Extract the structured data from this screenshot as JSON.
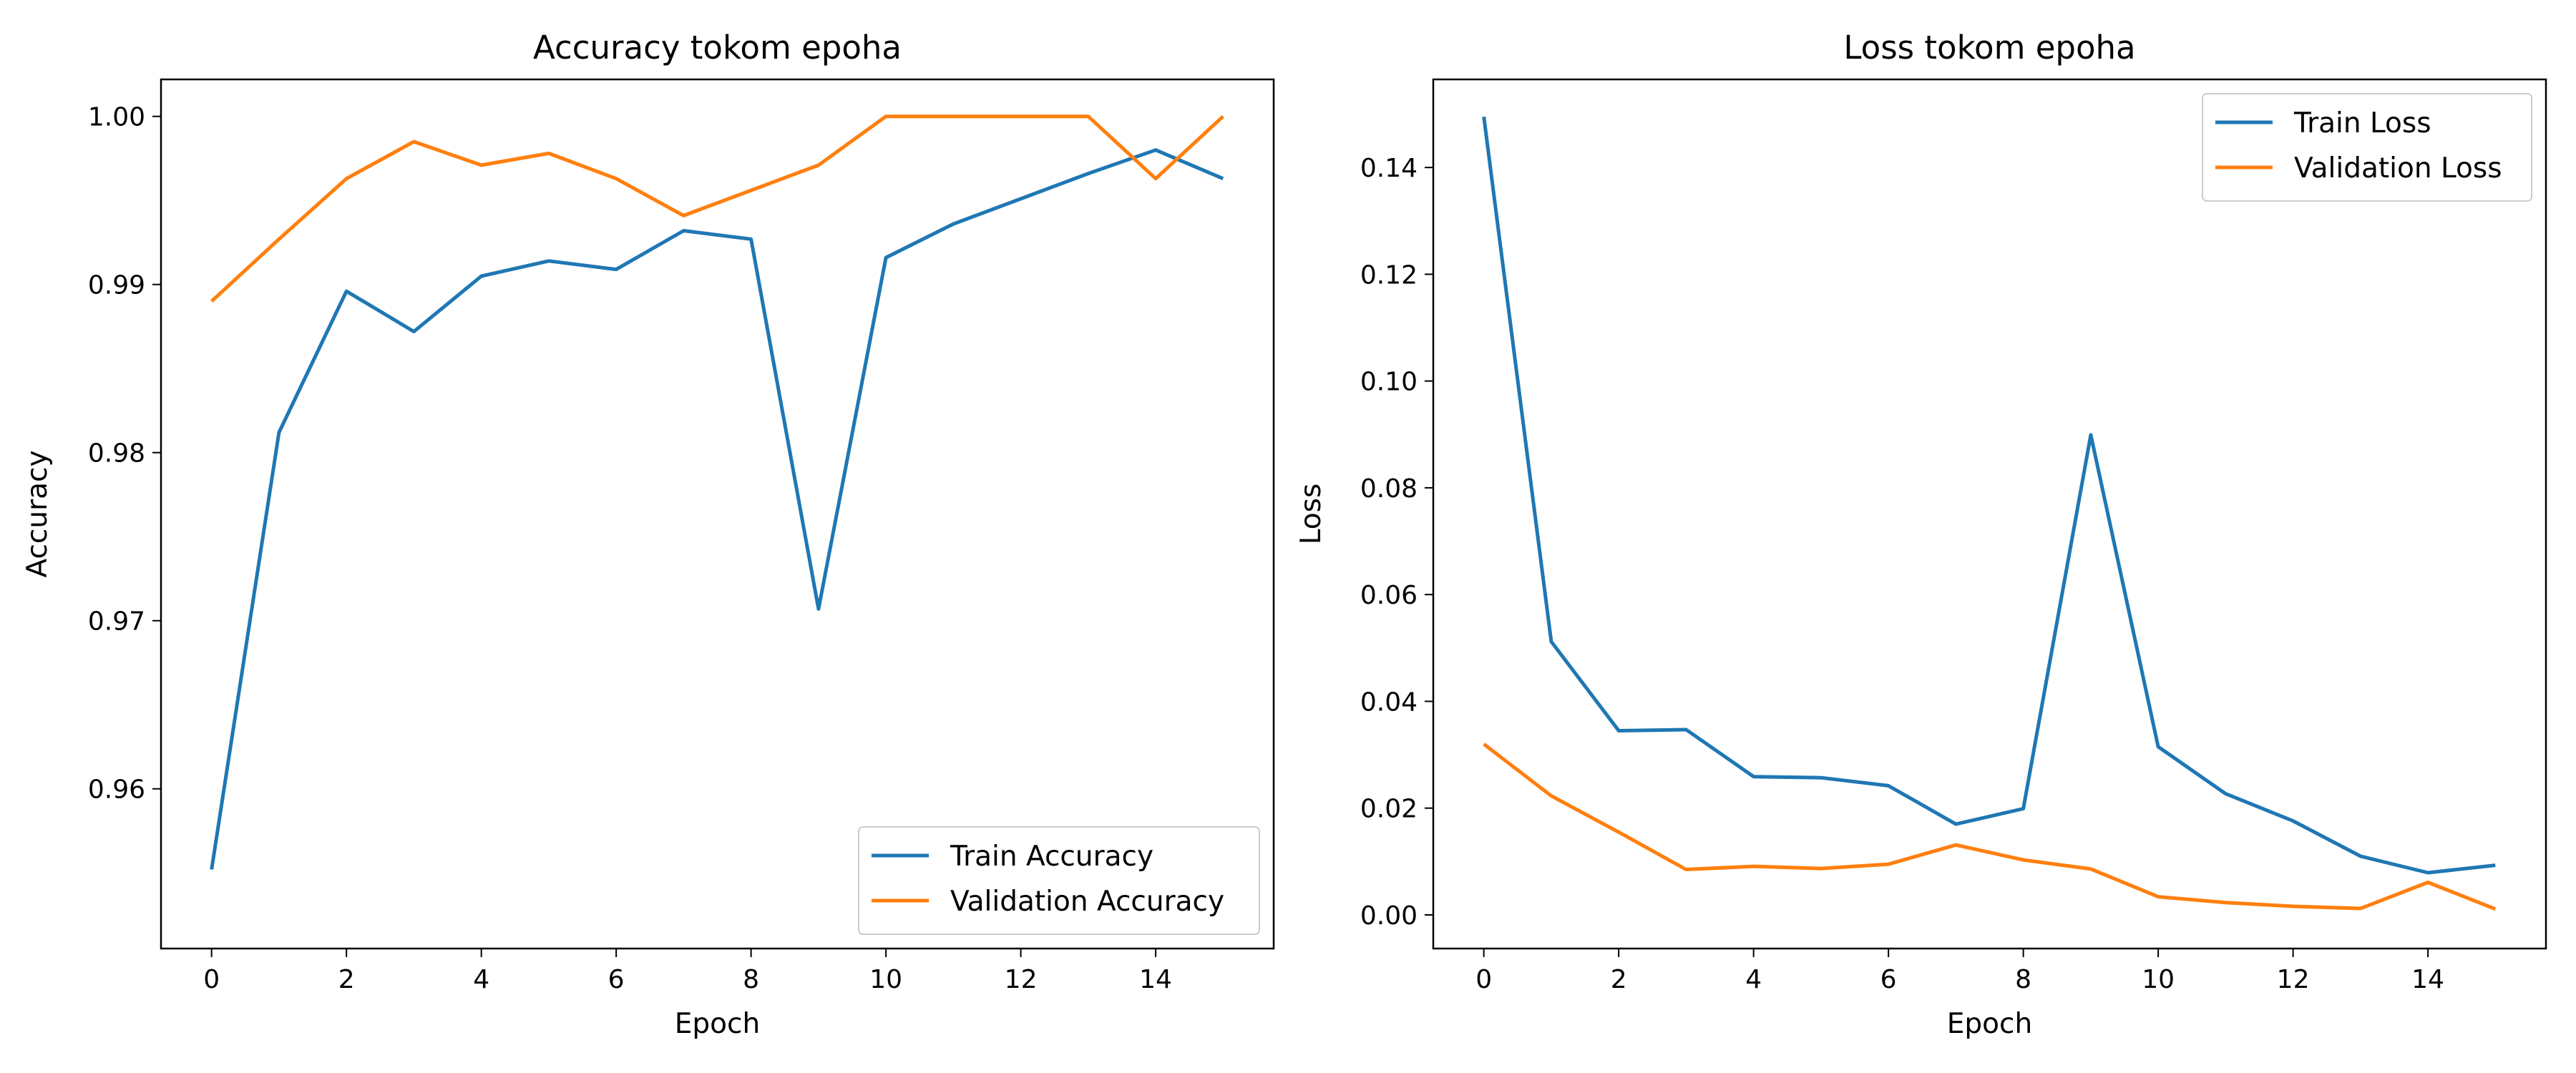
{
  "chart_data": [
    {
      "type": "line",
      "title": "Accuracy tokom epoha",
      "xlabel": "Epoch",
      "ylabel": "Accuracy",
      "x": [
        0,
        1,
        2,
        3,
        4,
        5,
        6,
        7,
        8,
        9,
        10,
        11,
        12,
        13,
        14,
        15
      ],
      "xlim": [
        -0.75,
        15.75
      ],
      "ylim": [
        0.9505,
        1.0022
      ],
      "xticks": [
        0,
        2,
        4,
        6,
        8,
        10,
        12,
        14
      ],
      "xtick_labels": [
        "0",
        "2",
        "4",
        "6",
        "8",
        "10",
        "12",
        "14"
      ],
      "yticks": [
        0.96,
        0.97,
        0.98,
        0.99,
        1.0
      ],
      "ytick_labels": [
        "0.96",
        "0.97",
        "0.98",
        "0.99",
        "1.00"
      ],
      "grid": false,
      "legend_position": "lower-right",
      "series": [
        {
          "name": "Train Accuracy",
          "color": "#1f77b4",
          "values": [
            0.9552,
            0.9812,
            0.9896,
            0.9872,
            0.9905,
            0.9914,
            0.9909,
            0.9932,
            0.9927,
            0.9707,
            0.9916,
            0.9936,
            0.9951,
            0.9966,
            0.998,
            0.9963
          ]
        },
        {
          "name": "Validation Accuracy",
          "color": "#ff7f0e",
          "values": [
            0.989,
            0.9927,
            0.9963,
            0.9985,
            0.9971,
            0.9978,
            0.9963,
            0.9941,
            0.9956,
            0.9971,
            1.0,
            1.0,
            1.0,
            1.0,
            0.9963,
            1.0
          ]
        }
      ]
    },
    {
      "type": "line",
      "title": "Loss tokom epoha",
      "xlabel": "Epoch",
      "ylabel": "Loss",
      "x": [
        0,
        1,
        2,
        3,
        4,
        5,
        6,
        7,
        8,
        9,
        10,
        11,
        12,
        13,
        14,
        15
      ],
      "xlim": [
        -0.75,
        15.75
      ],
      "ylim": [
        -0.0063,
        0.1565
      ],
      "xticks": [
        0,
        2,
        4,
        6,
        8,
        10,
        12,
        14
      ],
      "xtick_labels": [
        "0",
        "2",
        "4",
        "6",
        "8",
        "10",
        "12",
        "14"
      ],
      "yticks": [
        0.0,
        0.02,
        0.04,
        0.06,
        0.08,
        0.1,
        0.12,
        0.14
      ],
      "ytick_labels": [
        "0.00",
        "0.02",
        "0.04",
        "0.06",
        "0.08",
        "0.10",
        "0.12",
        "0.14"
      ],
      "grid": false,
      "legend_position": "upper-right",
      "series": [
        {
          "name": "Train Loss",
          "color": "#1f77b4",
          "values": [
            0.1495,
            0.0512,
            0.0345,
            0.0347,
            0.0259,
            0.0257,
            0.0242,
            0.017,
            0.0199,
            0.0899,
            0.0315,
            0.0227,
            0.0176,
            0.011,
            0.0079,
            0.0093
          ]
        },
        {
          "name": "Validation Loss",
          "color": "#ff7f0e",
          "values": [
            0.032,
            0.0223,
            0.0155,
            0.0085,
            0.0091,
            0.0087,
            0.0095,
            0.0131,
            0.0103,
            0.0086,
            0.0034,
            0.0023,
            0.0016,
            0.0012,
            0.0061,
            0.0011
          ]
        }
      ]
    }
  ]
}
